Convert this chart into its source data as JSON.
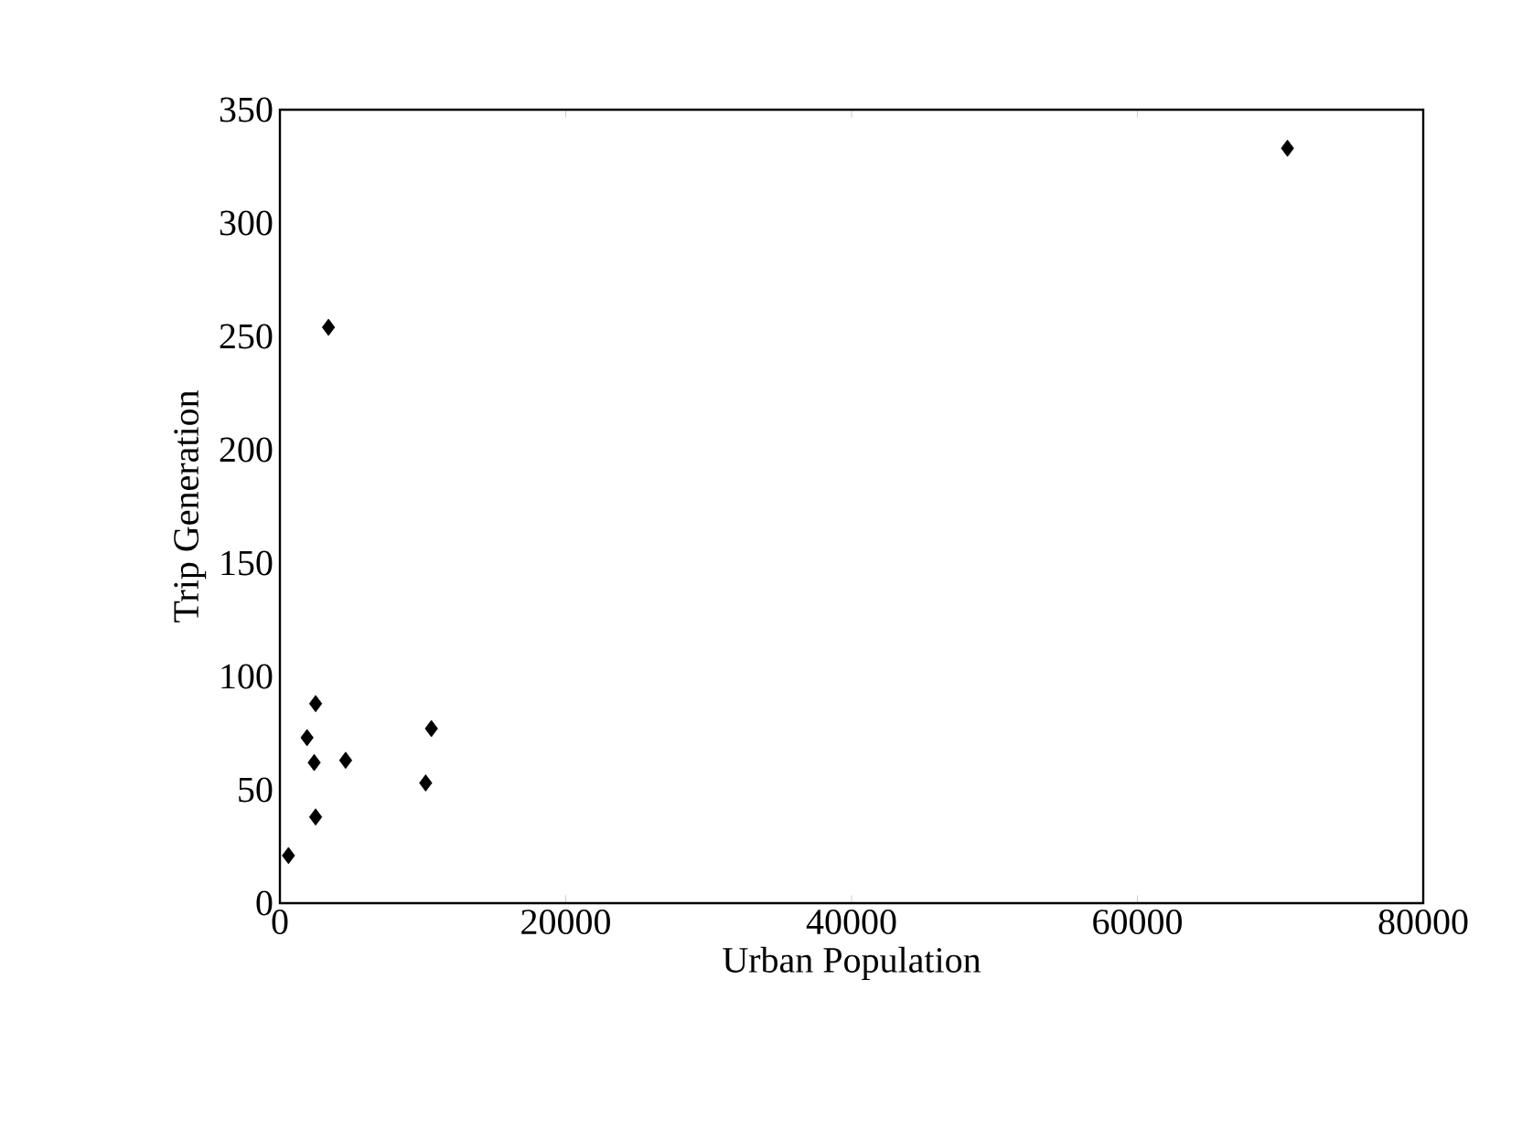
{
  "chart_data": {
    "type": "scatter",
    "xlabel": "Urban Population",
    "ylabel": "Trip Generation",
    "x": [
      70500,
      3400,
      2500,
      1900,
      2400,
      4600,
      10600,
      10200,
      2500,
      600
    ],
    "series": [
      {
        "color": "#000000",
        "values": [
          333,
          254,
          88,
          73,
          62,
          63,
          77,
          53,
          38,
          21
        ]
      }
    ],
    "marker": "diamond",
    "xlim": [
      0,
      80000
    ],
    "ylim": [
      0,
      350
    ],
    "xticks": [
      0,
      20000,
      40000,
      60000,
      80000
    ],
    "yticks": [
      0,
      50,
      100,
      150,
      200,
      250,
      300,
      350
    ]
  }
}
